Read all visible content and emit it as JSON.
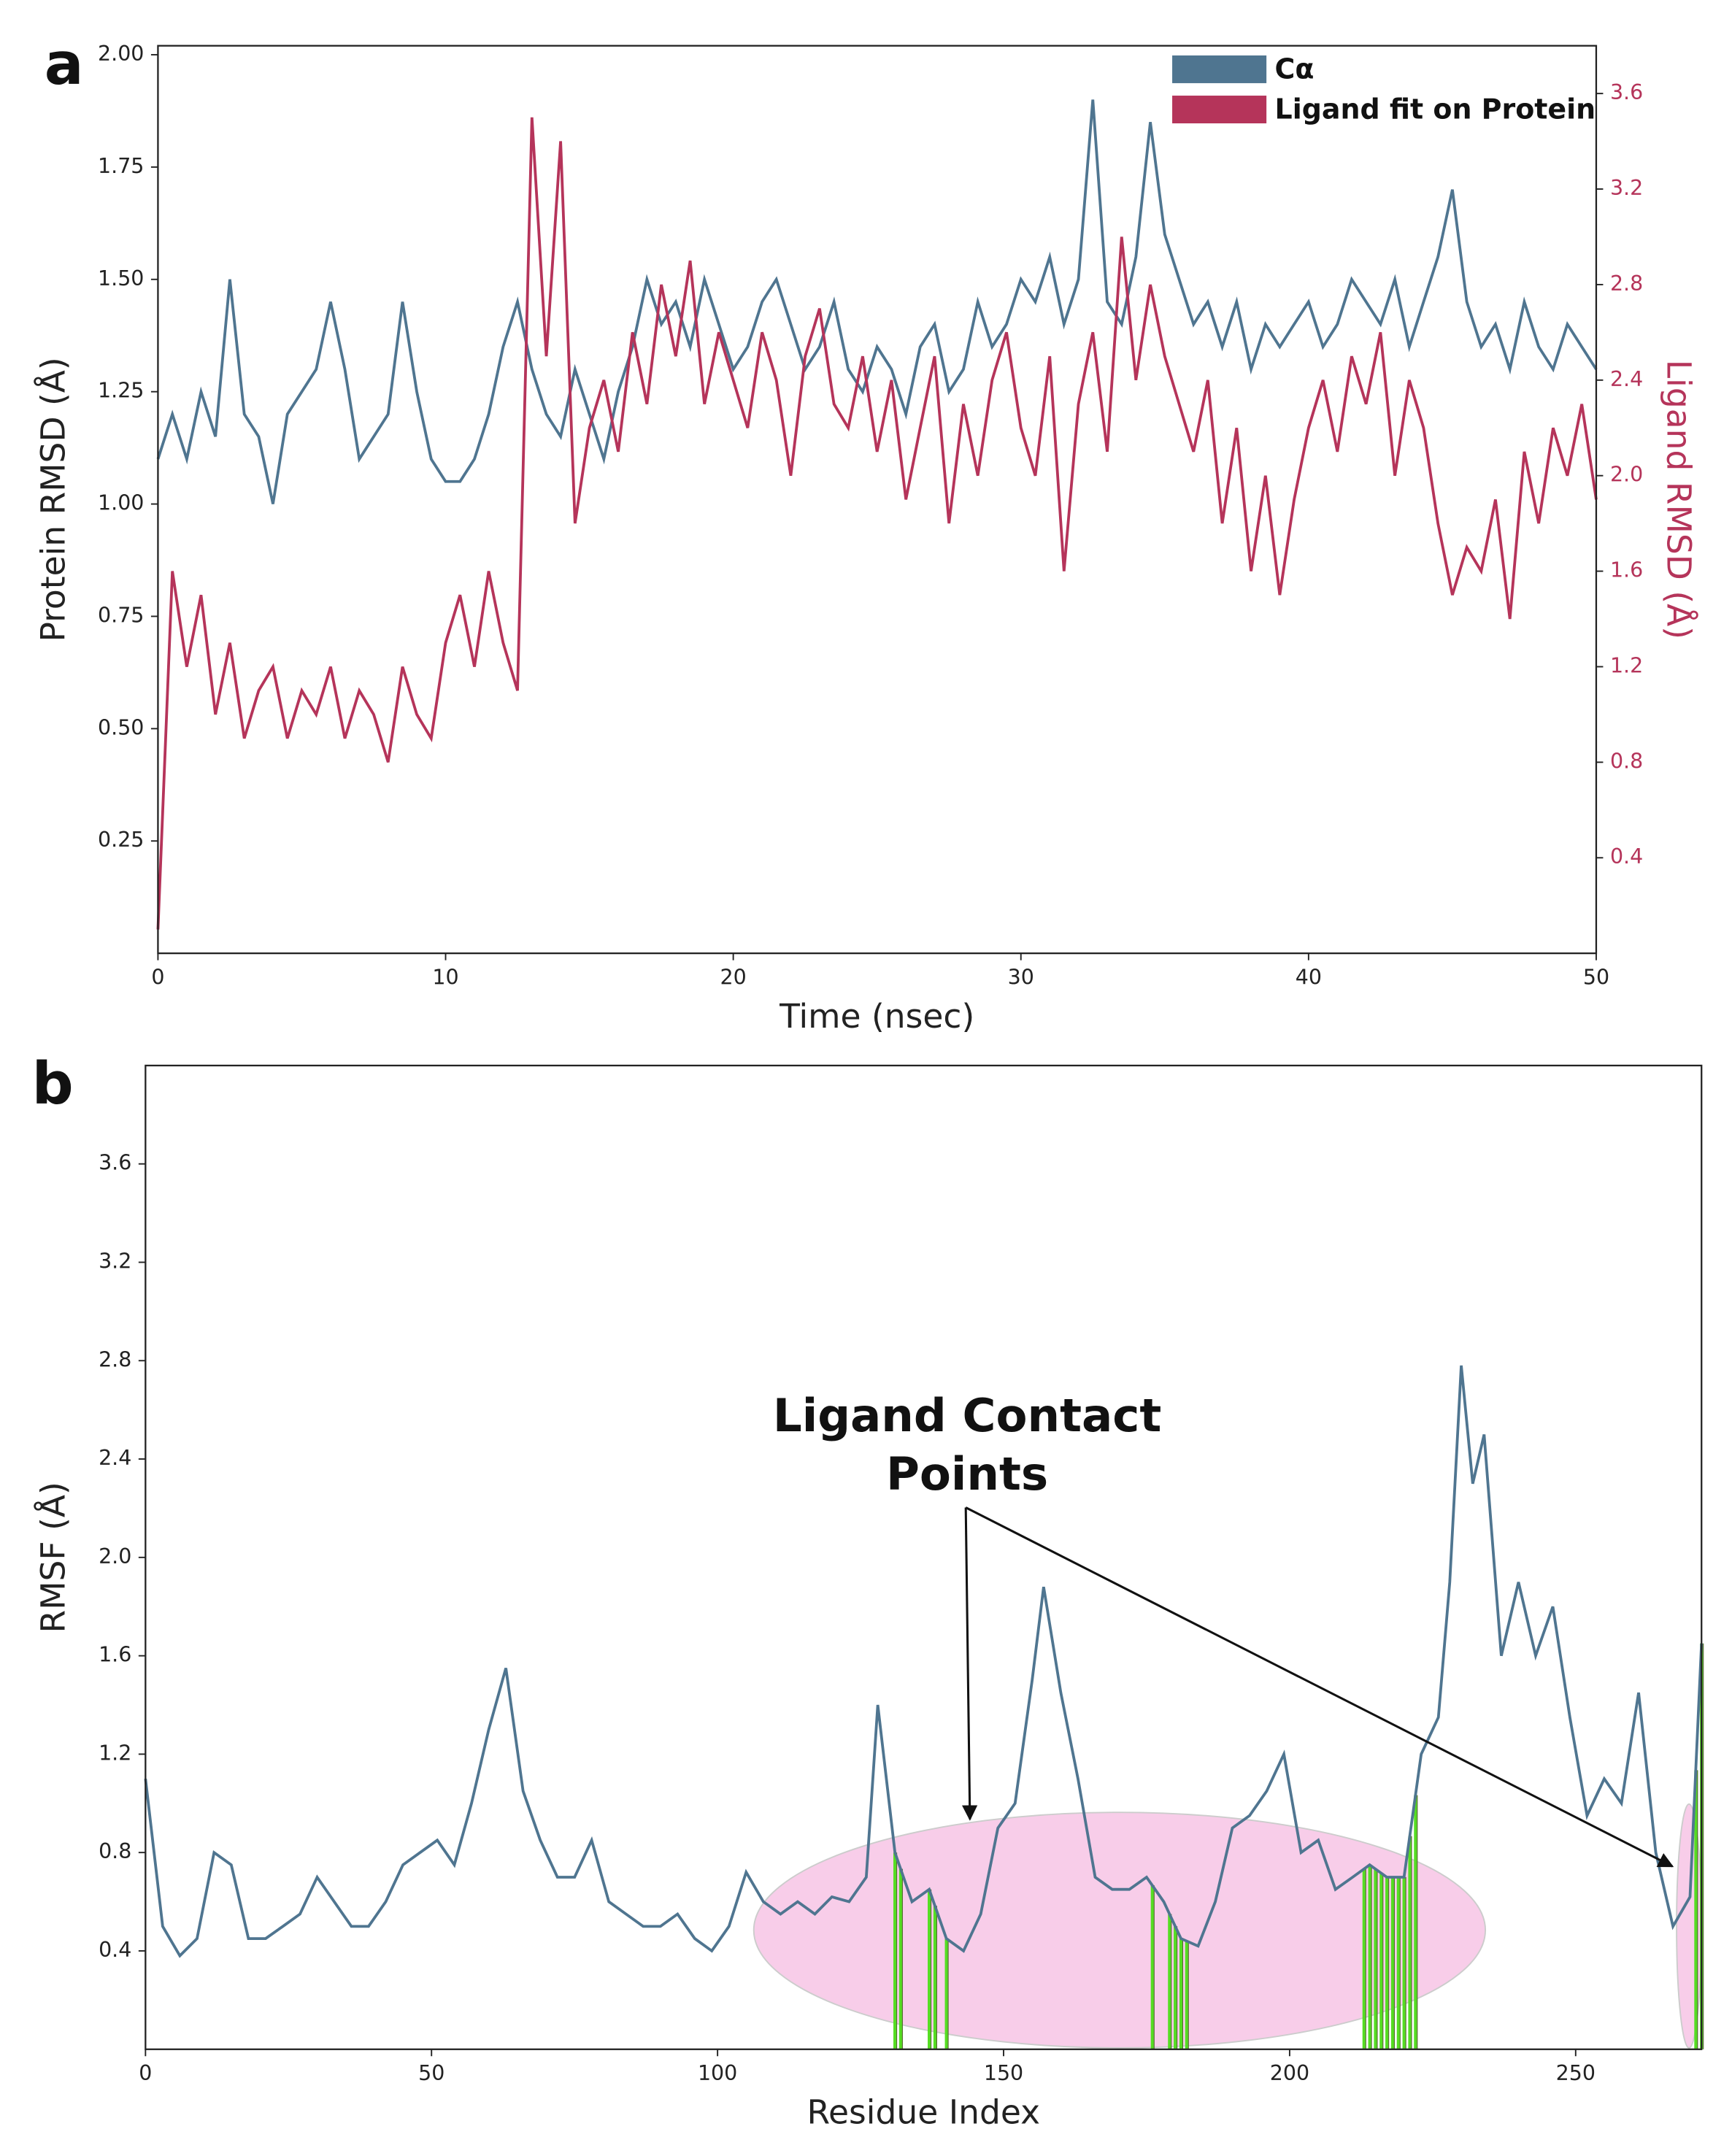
{
  "chart_data": [
    {
      "type": "line",
      "panel_label": "a",
      "xlabel": "Time (nsec)",
      "ylabel": "Protein RMSD (Å)",
      "y2label": "Ligand RMSD (Å)",
      "legend": "upper right",
      "xlim": [
        0,
        50
      ],
      "xticks": [
        0,
        10,
        20,
        30,
        40,
        50
      ],
      "ylim": [
        0,
        2.02
      ],
      "yticks": [
        0.25,
        {
          "value": 0.5,
          "label": "0.50"
        },
        0.75,
        {
          "value": 1,
          "label": "1.00"
        },
        1.25,
        {
          "value": 1.5,
          "label": "1.50"
        },
        1.75,
        {
          "value": 2,
          "label": "2.00"
        }
      ],
      "y2lim": [
        0,
        3.8
      ],
      "y2ticks": [
        0.4,
        0.8,
        1.2,
        1.6,
        {
          "value": 2,
          "label": "2.0"
        },
        2.4,
        2.8,
        3.2,
        3.6
      ],
      "x": [
        0,
        0.5,
        1,
        1.5,
        2,
        2.5,
        3,
        3.5,
        4,
        4.5,
        5,
        5.5,
        6,
        6.5,
        7,
        7.5,
        8,
        8.5,
        9,
        9.5,
        10,
        10.5,
        11,
        11.5,
        12,
        12.5,
        13,
        13.5,
        14,
        14.5,
        15,
        15.5,
        16,
        16.5,
        17,
        17.5,
        18,
        18.5,
        19,
        19.5,
        20,
        20.5,
        21,
        21.5,
        22,
        22.5,
        23,
        23.5,
        24,
        24.5,
        25,
        25.5,
        26,
        26.5,
        27,
        27.5,
        28,
        28.5,
        29,
        29.5,
        30,
        30.5,
        31,
        31.5,
        32,
        32.5,
        33,
        33.5,
        34,
        34.5,
        35,
        35.5,
        36,
        36.5,
        37,
        37.5,
        38,
        38.5,
        39,
        39.5,
        40,
        40.5,
        41,
        41.5,
        42,
        42.5,
        43,
        43.5,
        44,
        44.5,
        45,
        45.5,
        46,
        46.5,
        47,
        47.5,
        48,
        48.5,
        49,
        49.5,
        50
      ],
      "series": [
        {
          "name": "Cα",
          "color": "#4f7590",
          "axis": "y",
          "values": [
            1.1,
            1.2,
            1.1,
            1.25,
            1.15,
            1.5,
            1.2,
            1.15,
            1.0,
            1.2,
            1.25,
            1.3,
            1.45,
            1.3,
            1.1,
            1.15,
            1.2,
            1.45,
            1.25,
            1.1,
            1.05,
            1.05,
            1.1,
            1.2,
            1.35,
            1.45,
            1.3,
            1.2,
            1.15,
            1.3,
            1.2,
            1.1,
            1.25,
            1.35,
            1.5,
            1.4,
            1.45,
            1.35,
            1.5,
            1.4,
            1.3,
            1.35,
            1.45,
            1.5,
            1.4,
            1.3,
            1.35,
            1.45,
            1.3,
            1.25,
            1.35,
            1.3,
            1.2,
            1.35,
            1.4,
            1.25,
            1.3,
            1.45,
            1.35,
            1.4,
            1.5,
            1.45,
            1.55,
            1.4,
            1.5,
            1.9,
            1.45,
            1.4,
            1.55,
            1.85,
            1.6,
            1.5,
            1.4,
            1.45,
            1.35,
            1.45,
            1.3,
            1.4,
            1.35,
            1.4,
            1.45,
            1.35,
            1.4,
            1.5,
            1.45,
            1.4,
            1.5,
            1.35,
            1.45,
            1.55,
            1.7,
            1.45,
            1.35,
            1.4,
            1.3,
            1.45,
            1.35,
            1.3,
            1.4,
            1.35,
            1.3
          ]
        },
        {
          "name": "Ligand fit on Protein",
          "color": "#b5345a",
          "axis": "y2",
          "values": [
            0.1,
            1.6,
            1.2,
            1.5,
            1.0,
            1.3,
            0.9,
            1.1,
            1.2,
            0.9,
            1.1,
            1.0,
            1.2,
            0.9,
            1.1,
            1.0,
            0.8,
            1.2,
            1.0,
            0.9,
            1.3,
            1.5,
            1.2,
            1.6,
            1.3,
            1.1,
            3.5,
            2.5,
            3.4,
            1.8,
            2.2,
            2.4,
            2.1,
            2.6,
            2.3,
            2.8,
            2.5,
            2.9,
            2.3,
            2.6,
            2.4,
            2.2,
            2.6,
            2.4,
            2.0,
            2.5,
            2.7,
            2.3,
            2.2,
            2.5,
            2.1,
            2.4,
            1.9,
            2.2,
            2.5,
            1.8,
            2.3,
            2.0,
            2.4,
            2.6,
            2.2,
            2.0,
            2.5,
            1.6,
            2.3,
            2.6,
            2.1,
            3.0,
            2.4,
            2.8,
            2.5,
            2.3,
            2.1,
            2.4,
            1.8,
            2.2,
            1.6,
            2.0,
            1.5,
            1.9,
            2.2,
            2.4,
            2.1,
            2.5,
            2.3,
            2.6,
            2.0,
            2.4,
            2.2,
            1.8,
            1.5,
            1.7,
            1.6,
            1.9,
            1.4,
            2.1,
            1.8,
            2.2,
            2.0,
            2.3,
            1.9
          ]
        }
      ]
    },
    {
      "type": "line",
      "panel_label": "b",
      "xlabel": "Residue Index",
      "ylabel": "RMSF (Å)",
      "annotation": {
        "lines": [
          "Ligand Contact",
          "Points"
        ]
      },
      "xlim": [
        0,
        272
      ],
      "xticks": [
        0,
        50,
        100,
        150,
        200,
        250
      ],
      "ylim": [
        0,
        4.0
      ],
      "yticks": [
        0.4,
        0.8,
        1.2,
        1.6,
        {
          "value": 2,
          "label": "2.0"
        },
        2.4,
        2.8,
        3.2,
        3.6
      ],
      "x": [
        0,
        3,
        6,
        9,
        12,
        15,
        18,
        21,
        24,
        27,
        30,
        33,
        36,
        39,
        42,
        45,
        48,
        51,
        54,
        57,
        60,
        63,
        66,
        69,
        72,
        75,
        78,
        81,
        84,
        87,
        90,
        93,
        96,
        99,
        102,
        105,
        108,
        111,
        114,
        117,
        120,
        123,
        126,
        128,
        131,
        134,
        137,
        140,
        143,
        146,
        149,
        152,
        155,
        157,
        160,
        163,
        166,
        169,
        172,
        175,
        178,
        181,
        184,
        187,
        190,
        193,
        196,
        199,
        202,
        205,
        208,
        211,
        214,
        217,
        220,
        223,
        226,
        228,
        230,
        232,
        234,
        237,
        240,
        243,
        246,
        249,
        252,
        255,
        258,
        261,
        264,
        267,
        270,
        272
      ],
      "series": [
        {
          "name": "RMSF",
          "color": "#4f7590",
          "values": [
            1.1,
            0.5,
            0.38,
            0.45,
            0.8,
            0.75,
            0.45,
            0.45,
            0.5,
            0.55,
            0.7,
            0.6,
            0.5,
            0.5,
            0.6,
            0.75,
            0.8,
            0.85,
            0.75,
            1.0,
            1.3,
            1.55,
            1.05,
            0.85,
            0.7,
            0.7,
            0.85,
            0.6,
            0.55,
            0.5,
            0.5,
            0.55,
            0.45,
            0.4,
            0.5,
            0.72,
            0.6,
            0.55,
            0.6,
            0.55,
            0.62,
            0.6,
            0.7,
            1.4,
            0.8,
            0.6,
            0.65,
            0.45,
            0.4,
            0.55,
            0.9,
            1.0,
            1.5,
            1.88,
            1.45,
            1.1,
            0.7,
            0.65,
            0.65,
            0.7,
            0.6,
            0.45,
            0.42,
            0.6,
            0.9,
            0.95,
            1.05,
            1.2,
            0.8,
            0.85,
            0.65,
            0.7,
            0.75,
            0.7,
            0.7,
            1.2,
            1.35,
            1.9,
            2.78,
            2.3,
            2.5,
            1.6,
            1.9,
            1.6,
            1.8,
            1.35,
            0.95,
            1.1,
            1.0,
            1.45,
            0.8,
            0.5,
            0.62,
            1.65
          ]
        }
      ],
      "contacts": {
        "color": "#55dd22",
        "residues": [
          131,
          132,
          137,
          138,
          140,
          176,
          179,
          180,
          181,
          182,
          213,
          214,
          215,
          216,
          217,
          218,
          219,
          220,
          221,
          222,
          271,
          272
        ]
      }
    }
  ]
}
